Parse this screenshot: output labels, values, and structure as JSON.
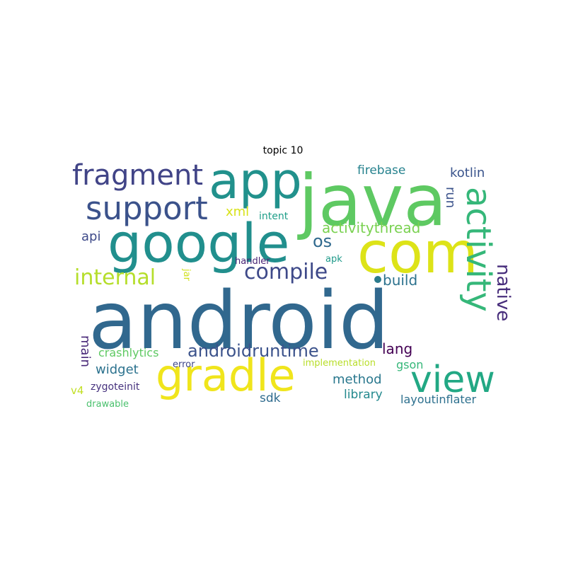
{
  "title": "topic 10",
  "words": [
    {
      "key": "android",
      "text": "android",
      "color": "#31688e"
    },
    {
      "key": "java",
      "text": "java",
      "color": "#5ec962"
    },
    {
      "key": "com",
      "text": "com",
      "color": "#dde318"
    },
    {
      "key": "google",
      "text": "google",
      "color": "#218f8d"
    },
    {
      "key": "app",
      "text": "app",
      "color": "#21918c"
    },
    {
      "key": "gradle",
      "text": "gradle",
      "color": "#f0e51c"
    },
    {
      "key": "activity",
      "text": "activity",
      "color": "#35b779"
    },
    {
      "key": "view",
      "text": "view",
      "color": "#22a884"
    },
    {
      "key": "support",
      "text": "support",
      "color": "#3b528b"
    },
    {
      "key": "fragment",
      "text": "fragment",
      "color": "#414487"
    },
    {
      "key": "internal",
      "text": "internal",
      "color": "#b5de2b"
    },
    {
      "key": "compile",
      "text": "compile",
      "color": "#3e4989"
    },
    {
      "key": "androidruntime",
      "text": "androidruntime",
      "color": "#3b528b"
    },
    {
      "key": "activitythread",
      "text": "activitythread",
      "color": "#7ad151"
    },
    {
      "key": "native",
      "text": "native",
      "color": "#472d7b"
    },
    {
      "key": "os",
      "text": "os",
      "color": "#30698e"
    },
    {
      "key": "build",
      "text": "build",
      "color": "#2c728e"
    },
    {
      "key": "firebase",
      "text": "firebase",
      "color": "#26828e"
    },
    {
      "key": "kotlin",
      "text": "kotlin",
      "color": "#3a548c"
    },
    {
      "key": "run",
      "text": "run",
      "color": "#3b528b"
    },
    {
      "key": "xml",
      "text": "xml",
      "color": "#d8e219"
    },
    {
      "key": "intent",
      "text": "intent",
      "color": "#1f9e89"
    },
    {
      "key": "api",
      "text": "api",
      "color": "#3e4a89"
    },
    {
      "key": "lang",
      "text": "lang",
      "color": "#440154"
    },
    {
      "key": "widget",
      "text": "widget",
      "color": "#2c728e"
    },
    {
      "key": "main",
      "text": "main",
      "color": "#482878"
    },
    {
      "key": "crashlytics",
      "text": "crashlytics",
      "color": "#5ec962"
    },
    {
      "key": "method",
      "text": "method",
      "color": "#2a788e"
    },
    {
      "key": "library",
      "text": "library",
      "color": "#23898e"
    },
    {
      "key": "sdk",
      "text": "sdk",
      "color": "#2f6b8e"
    },
    {
      "key": "layoutinflater",
      "text": "layoutinflater",
      "color": "#2d708e"
    },
    {
      "key": "gson",
      "text": "gson",
      "color": "#35b779"
    },
    {
      "key": "handler",
      "text": "handler",
      "color": "#482475"
    },
    {
      "key": "apk",
      "text": "apk",
      "color": "#1f9a8a"
    },
    {
      "key": "jar",
      "text": "jar",
      "color": "#d0e11c"
    },
    {
      "key": "error",
      "text": "error",
      "color": "#3f4788"
    },
    {
      "key": "implementation",
      "text": "implementation",
      "color": "#b8de29"
    },
    {
      "key": "v4",
      "text": "v4",
      "color": "#c2df23"
    },
    {
      "key": "zygoteinit",
      "text": "zygoteinit",
      "color": "#46327e"
    },
    {
      "key": "drawable",
      "text": "drawable",
      "color": "#4ac16d"
    }
  ]
}
